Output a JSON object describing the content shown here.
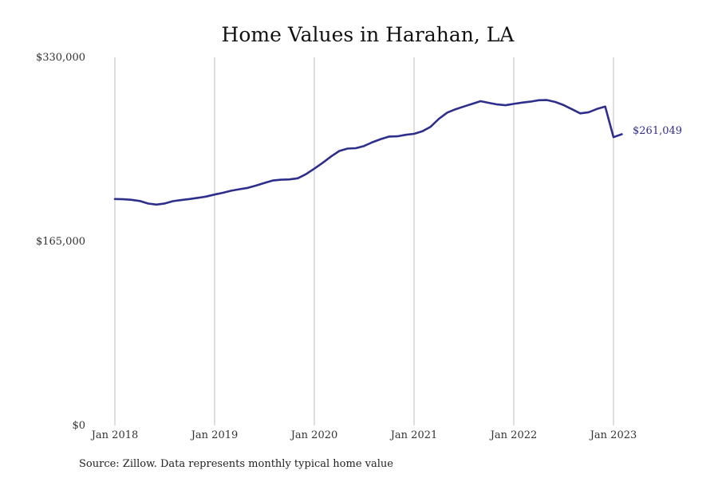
{
  "chart_data": {
    "type": "line",
    "title": "Home Values in Harahan, LA",
    "xlabel": "",
    "ylabel": "",
    "source": "Source: Zillow. Data represents monthly typical home value",
    "ylim": [
      0,
      330000
    ],
    "y_ticks": [
      0,
      165000,
      330000
    ],
    "y_tick_labels": [
      "$0",
      "$165,000",
      "$330,000"
    ],
    "x_ticks": [
      "2018-01",
      "2019-01",
      "2020-01",
      "2021-01",
      "2022-01",
      "2023-01"
    ],
    "x_tick_labels": [
      "Jan 2018",
      "Jan 2019",
      "Jan 2020",
      "Jan 2021",
      "Jan 2022",
      "Jan 2023"
    ],
    "grid": "vertical",
    "line_color": "#2e2e8c",
    "end_label": "$261,049",
    "series": [
      {
        "x": [
          "2018-01",
          "2018-02",
          "2018-03",
          "2018-04",
          "2018-05",
          "2018-06",
          "2018-07",
          "2018-08",
          "2018-09",
          "2018-10",
          "2018-11",
          "2018-12",
          "2019-01",
          "2019-02",
          "2019-03",
          "2019-04",
          "2019-05",
          "2019-06",
          "2019-07",
          "2019-08",
          "2019-09",
          "2019-10",
          "2019-11",
          "2019-12",
          "2020-01",
          "2020-02",
          "2020-03",
          "2020-04",
          "2020-05",
          "2020-06",
          "2020-07",
          "2020-08",
          "2020-09",
          "2020-10",
          "2020-11",
          "2020-12",
          "2021-01",
          "2021-02",
          "2021-03",
          "2021-04",
          "2021-05",
          "2021-06",
          "2021-07",
          "2021-08",
          "2021-09",
          "2021-10",
          "2021-11",
          "2021-12",
          "2022-01",
          "2022-02",
          "2022-03",
          "2022-04",
          "2022-05",
          "2022-06",
          "2022-07",
          "2022-08",
          "2022-09",
          "2022-10",
          "2022-11",
          "2022-12",
          "2023-01",
          "2023-02"
        ],
        "values": [
          203000,
          202800,
          202300,
          201200,
          198900,
          198000,
          199000,
          201100,
          202100,
          203000,
          204100,
          205200,
          207000,
          208600,
          210400,
          211800,
          213000,
          215100,
          217400,
          219600,
          220300,
          220600,
          221600,
          225300,
          230200,
          235400,
          241000,
          246100,
          248200,
          248600,
          250600,
          253900,
          256700,
          259000,
          259200,
          260600,
          261400,
          263700,
          267800,
          275000,
          280500,
          283500,
          285900,
          288300,
          290700,
          289200,
          287800,
          287100,
          288300,
          289400,
          290300,
          291600,
          291700,
          290000,
          287200,
          283500,
          279800,
          280800,
          283700,
          285900,
          258400,
          261049
        ]
      }
    ]
  }
}
